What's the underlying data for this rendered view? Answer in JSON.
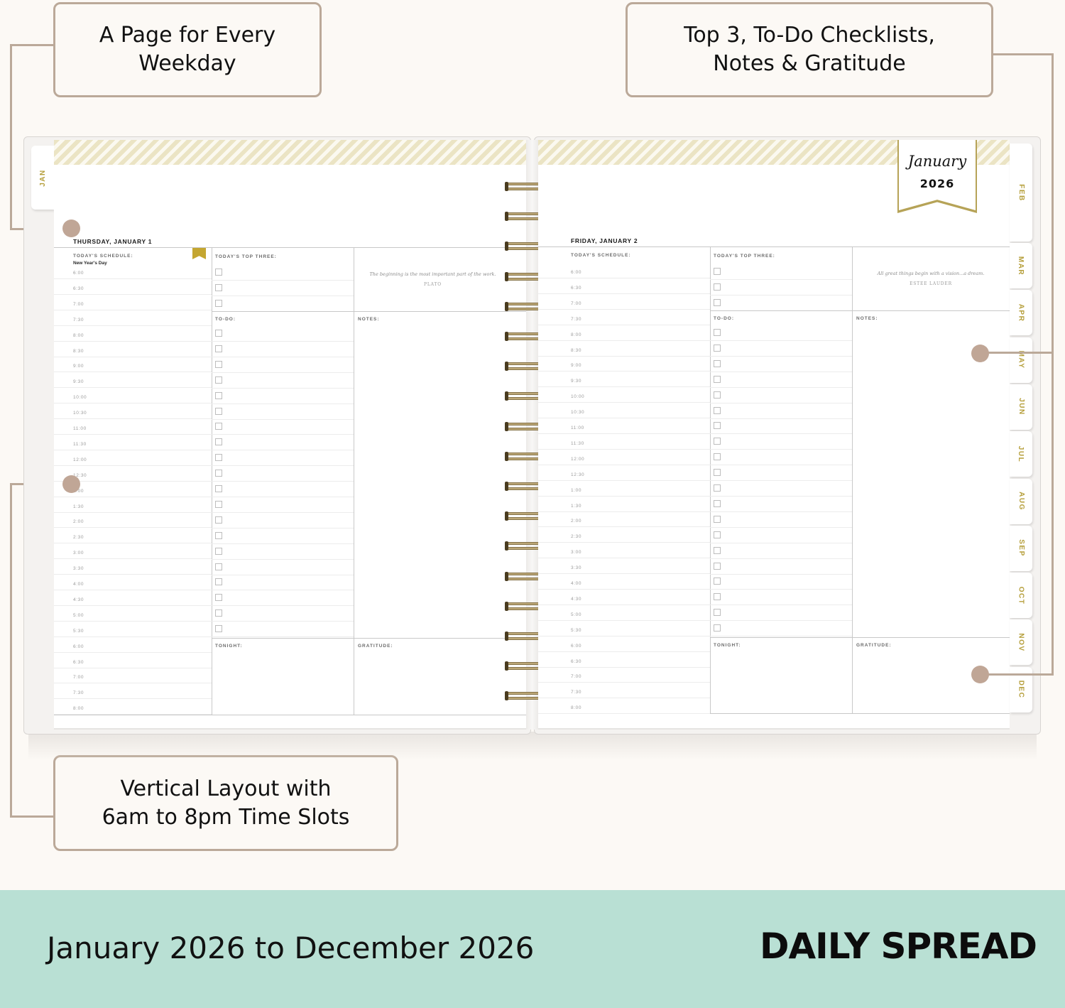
{
  "callouts": {
    "top_left": {
      "line1": "A Page for Every",
      "line2": "Weekday"
    },
    "top_right": {
      "line1": "Top 3, To-Do Checklists,",
      "line2": "Notes & Gratitude"
    },
    "bottom_left": {
      "line1": "Vertical Layout with",
      "line2": "6am to 8pm Time Slots"
    }
  },
  "colors": {
    "background": "#fcf9f5",
    "callout_border": "#bba999",
    "dot": "#c0a696",
    "tab_text": "#b59e3a",
    "stripe": "#ebe4c4",
    "footer": "#b9e0d4",
    "bookmark": "#c4a631"
  },
  "month_ribbon": {
    "month": "January",
    "year": "2026"
  },
  "tabs": {
    "left": "JAN",
    "right": [
      "FEB",
      "MAR",
      "APR",
      "MAY",
      "JUN",
      "JUL",
      "AUG",
      "SEP",
      "OCT",
      "NOV",
      "DEC"
    ]
  },
  "times": [
    "6:00",
    "6:30",
    "7:00",
    "7:30",
    "8:00",
    "8:30",
    "9:00",
    "9:30",
    "10:00",
    "10:30",
    "11:00",
    "11:30",
    "12:00",
    "12:30",
    "1:00",
    "1:30",
    "2:00",
    "2:30",
    "3:00",
    "3:30",
    "4:00",
    "4:30",
    "5:00",
    "5:30",
    "6:00",
    "6:30",
    "7:00",
    "7:30",
    "8:00"
  ],
  "left_page": {
    "date": "THURSDAY, JANUARY 1",
    "schedule_label": "TODAY'S SCHEDULE:",
    "holiday": "New Year's Day",
    "top_three_label": "TODAY'S TOP THREE:",
    "todo_label": "TO-DO:",
    "notes_label": "NOTES:",
    "tonight_label": "TONIGHT:",
    "gratitude_label": "GRATITUDE:",
    "quote": "The beginning is the most important part of the work.",
    "quote_author": "PLATO"
  },
  "right_page": {
    "date": "FRIDAY, JANUARY 2",
    "schedule_label": "TODAY'S SCHEDULE:",
    "top_three_label": "TODAY'S TOP THREE:",
    "todo_label": "TO-DO:",
    "notes_label": "NOTES:",
    "tonight_label": "TONIGHT:",
    "gratitude_label": "GRATITUDE:",
    "quote": "All great things begin with a vision...a dream.",
    "quote_author": "ESTEE LAUDER"
  },
  "footer": {
    "date_range": "January 2026 to December 2026",
    "title": "DAILY SPREAD"
  }
}
